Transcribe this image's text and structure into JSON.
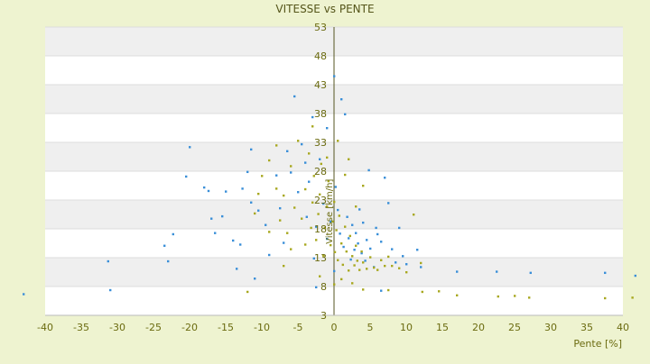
{
  "chart_data": {
    "type": "scatter",
    "title": "VITESSE vs PENTE",
    "xlabel": "Pente [%]",
    "ylabel": "Vitesse [km/h]",
    "xlim": [
      -40,
      40
    ],
    "ylim": [
      3,
      53
    ],
    "xticks": [
      -40,
      -35,
      -30,
      -25,
      -20,
      -15,
      -10,
      -5,
      0,
      5,
      10,
      15,
      20,
      25,
      30,
      35,
      40
    ],
    "yticks": [
      3,
      8,
      13,
      18,
      23,
      28,
      33,
      38,
      43,
      48,
      53
    ],
    "grid": "horizontal bands",
    "colors": {
      "background": "#eef3d0",
      "plot_band_light": "#ffffff",
      "plot_band_dark": "#efefef",
      "axis_text": "#6b6b10",
      "title_text": "#55551a",
      "series_blue": "#3a8fd8",
      "series_olive": "#a8a820"
    },
    "series": [
      {
        "color": "#3a8fd8",
        "points": [
          [
            -43,
            6.7
          ],
          [
            -31.3,
            12.4
          ],
          [
            -31,
            7.4
          ],
          [
            -23.5,
            15.1
          ],
          [
            -23,
            12.4
          ],
          [
            -22.3,
            17.1
          ],
          [
            -20,
            32.2
          ],
          [
            -20.5,
            27.1
          ],
          [
            -18,
            25.2
          ],
          [
            -17.4,
            24.6
          ],
          [
            -17,
            19.8
          ],
          [
            -16.5,
            17.3
          ],
          [
            -15.5,
            20.2
          ],
          [
            -15,
            24.5
          ],
          [
            -14,
            16
          ],
          [
            -13,
            15.3
          ],
          [
            -13.5,
            11.1
          ],
          [
            -12.7,
            25
          ],
          [
            -12,
            27.9
          ],
          [
            -11.5,
            31.8
          ],
          [
            -11,
            9.4
          ],
          [
            -11.5,
            22.6
          ],
          [
            -10.5,
            21.2
          ],
          [
            -9,
            13.5
          ],
          [
            -9.5,
            18.7
          ],
          [
            -8,
            27.3
          ],
          [
            -7.5,
            21.6
          ],
          [
            -7,
            15.6
          ],
          [
            -6.5,
            31.5
          ],
          [
            -6,
            27.8
          ],
          [
            -5.5,
            41
          ],
          [
            -5,
            24.4
          ],
          [
            -4.5,
            32.7
          ],
          [
            -4,
            29.5
          ],
          [
            -3.8,
            20.1
          ],
          [
            -3.5,
            26.2
          ],
          [
            -3,
            37.4
          ],
          [
            -2.8,
            12.9
          ],
          [
            -2.5,
            18.4
          ],
          [
            -2,
            30.1
          ],
          [
            -1.5,
            22.4
          ],
          [
            -1,
            35.5
          ],
          [
            -1,
            16.3
          ],
          [
            -0.5,
            19.3
          ],
          [
            0,
            44.5
          ],
          [
            0,
            10.7
          ],
          [
            0.2,
            25.3
          ],
          [
            0.5,
            21.3
          ],
          [
            0.8,
            17.2
          ],
          [
            1,
            40.5
          ],
          [
            1.3,
            14.9
          ],
          [
            1.5,
            37.9
          ],
          [
            1.8,
            20.1
          ],
          [
            2,
            16.4
          ],
          [
            2.3,
            12.7
          ],
          [
            2.5,
            18.7
          ],
          [
            2.8,
            14.4
          ],
          [
            3,
            17.3
          ],
          [
            3.3,
            15.5
          ],
          [
            3.5,
            21.4
          ],
          [
            3.8,
            13.8
          ],
          [
            4,
            19.1
          ],
          [
            4.3,
            12.5
          ],
          [
            4.5,
            16.1
          ],
          [
            4.8,
            28.2
          ],
          [
            5,
            14.6
          ],
          [
            5.5,
            11.4
          ],
          [
            5.8,
            18.2
          ],
          [
            6,
            17.1
          ],
          [
            6.5,
            15.8
          ],
          [
            7,
            26.9
          ],
          [
            7.5,
            22.5
          ],
          [
            8,
            14.5
          ],
          [
            8.5,
            12.2
          ],
          [
            9,
            18.2
          ],
          [
            9.5,
            13.3
          ],
          [
            10,
            11.9
          ],
          [
            11.5,
            14.4
          ],
          [
            12,
            11.4
          ],
          [
            17,
            10.6
          ],
          [
            22.5,
            10.6
          ],
          [
            27.2,
            10.4
          ],
          [
            37.5,
            10.4
          ],
          [
            41.7,
            9.9
          ],
          [
            6.5,
            7.3
          ],
          [
            -2.5,
            7.9
          ]
        ]
      },
      {
        "color": "#a8a820",
        "points": [
          [
            -12,
            7.1
          ],
          [
            -8,
            25
          ],
          [
            -7.5,
            19.5
          ],
          [
            -7,
            23.8
          ],
          [
            -6.5,
            17.3
          ],
          [
            -6,
            28.9
          ],
          [
            -5.5,
            21.7
          ],
          [
            -5,
            33.3
          ],
          [
            -4.5,
            19.8
          ],
          [
            -4,
            24.9
          ],
          [
            -3.5,
            31.1
          ],
          [
            -3.2,
            18.2
          ],
          [
            -3,
            22.6
          ],
          [
            -2.8,
            27.2
          ],
          [
            -2.5,
            16.1
          ],
          [
            -2.2,
            20.6
          ],
          [
            -2,
            24
          ],
          [
            -1.8,
            29.3
          ],
          [
            -1.5,
            13.4
          ],
          [
            -1.3,
            18.2
          ],
          [
            -1,
            21.9
          ],
          [
            -0.8,
            26.3
          ],
          [
            -0.5,
            15.2
          ],
          [
            -0.2,
            19.3
          ],
          [
            0,
            22.7
          ],
          [
            0.1,
            14
          ],
          [
            0.3,
            17.8
          ],
          [
            0.5,
            12.6
          ],
          [
            0.7,
            20.3
          ],
          [
            1,
            15.5
          ],
          [
            1.2,
            11.8
          ],
          [
            1.5,
            18.4
          ],
          [
            1.7,
            14.1
          ],
          [
            2,
            10.8
          ],
          [
            2.2,
            16.8
          ],
          [
            2.5,
            13.3
          ],
          [
            2.8,
            11.7
          ],
          [
            3,
            15.1
          ],
          [
            3.2,
            12.5
          ],
          [
            3.5,
            10.9
          ],
          [
            3.8,
            14.1
          ],
          [
            4,
            12.2
          ],
          [
            4.5,
            11.1
          ],
          [
            5,
            13.1
          ],
          [
            5.5,
            11.3
          ],
          [
            6,
            10.9
          ],
          [
            6.5,
            12.6
          ],
          [
            7,
            11.6
          ],
          [
            7.5,
            13.2
          ],
          [
            8,
            11.6
          ],
          [
            9,
            11.2
          ],
          [
            10,
            10.5
          ],
          [
            11,
            20.5
          ],
          [
            12,
            12.1
          ],
          [
            1.5,
            27.4
          ],
          [
            2,
            30.1
          ],
          [
            3,
            21.9
          ],
          [
            4,
            25.5
          ],
          [
            -3,
            35.8
          ],
          [
            -1,
            30.4
          ],
          [
            0.5,
            33.3
          ],
          [
            -4,
            15.3
          ],
          [
            -6,
            14.5
          ],
          [
            -8,
            32.5
          ],
          [
            -9,
            29.9
          ],
          [
            -10,
            27.2
          ],
          [
            -10.5,
            24.1
          ],
          [
            -11,
            20.7
          ],
          [
            -9,
            17.5
          ],
          [
            -7,
            11.6
          ],
          [
            -2,
            9.8
          ],
          [
            0,
            8.4
          ],
          [
            1,
            9.3
          ],
          [
            2.5,
            8.6
          ],
          [
            4,
            7.5
          ],
          [
            7.5,
            7.4
          ],
          [
            12.2,
            7.1
          ],
          [
            14.5,
            7.2
          ],
          [
            17,
            6.5
          ],
          [
            22.7,
            6.3
          ],
          [
            25,
            6.4
          ],
          [
            27,
            6.1
          ],
          [
            37.5,
            6
          ],
          [
            41.3,
            6.1
          ]
        ]
      }
    ]
  }
}
